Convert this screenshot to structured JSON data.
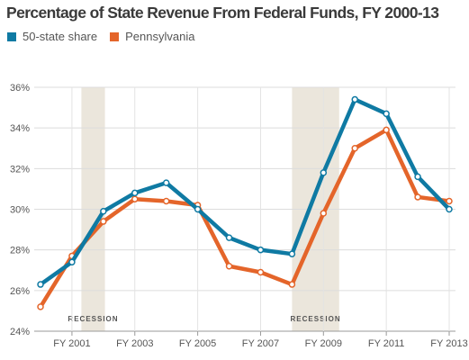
{
  "chart_data": {
    "type": "line",
    "title": "Percentage of State Revenue From Federal Funds, FY 2000-13",
    "x": [
      2000,
      2001,
      2002,
      2003,
      2004,
      2005,
      2006,
      2007,
      2008,
      2009,
      2010,
      2011,
      2012,
      2013
    ],
    "xtick_values": [
      2001,
      2003,
      2005,
      2007,
      2009,
      2011,
      2013
    ],
    "xtick_labels": [
      "FY 2001",
      "FY 2003",
      "FY 2005",
      "FY 2007",
      "FY 2009",
      "FY 2011",
      "FY 2013"
    ],
    "ylim": [
      24,
      36
    ],
    "ytick_values": [
      24,
      26,
      28,
      30,
      32,
      34,
      36
    ],
    "ytick_labels": [
      "24%",
      "26%",
      "28%",
      "30%",
      "32%",
      "34%",
      "36%"
    ],
    "grid": true,
    "legend_position": "top-left",
    "series": [
      {
        "name": "50-state share",
        "color": "#0f7aa3",
        "values": [
          26.3,
          27.4,
          29.9,
          30.8,
          31.3,
          30.0,
          28.6,
          28.0,
          27.8,
          31.8,
          35.4,
          34.7,
          31.6,
          30.0
        ]
      },
      {
        "name": "Pennsylvania",
        "color": "#e4652a",
        "values": [
          25.2,
          27.7,
          29.4,
          30.5,
          30.4,
          30.2,
          27.2,
          26.9,
          26.3,
          29.8,
          33.0,
          33.9,
          30.6,
          30.4
        ]
      }
    ],
    "shaded_regions": [
      {
        "label": "RECESSION",
        "start": 2001.3,
        "end": 2002.05
      },
      {
        "label": "RECESSION",
        "start": 2008.0,
        "end": 2009.5
      }
    ],
    "shade_color": "#ebe6dc"
  }
}
